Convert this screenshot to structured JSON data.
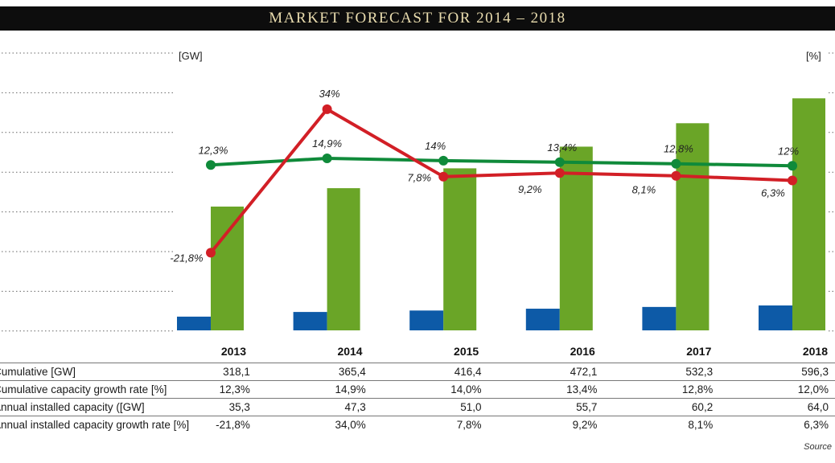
{
  "title": "MARKET FORECAST FOR 2014 – 2018",
  "colors": {
    "cumulative_bar": "#6aa527",
    "annual_bar": "#0d5aa7",
    "cumulative_growth_line": "#0f8a3a",
    "annual_growth_line": "#d21f26",
    "title_bg": "#0d0d0d",
    "title_text": "#e9dcae"
  },
  "chart_data": {
    "type": "bar",
    "categories": [
      "2013",
      "2014",
      "2015",
      "2016",
      "2017",
      "2018"
    ],
    "left_unit": "[GW]",
    "right_unit": "[%]",
    "series": [
      {
        "key": "annual",
        "kind": "bar",
        "axis": "left",
        "values": [
          35.3,
          47.3,
          51.0,
          55.7,
          60.2,
          64.0
        ]
      },
      {
        "key": "cumulative",
        "kind": "bar",
        "axis": "left",
        "values": [
          318.1,
          365.4,
          416.4,
          472.1,
          532.3,
          596.3
        ]
      },
      {
        "key": "cumulative_growth",
        "kind": "line",
        "axis": "right",
        "values": [
          12.3,
          14.9,
          14.0,
          13.4,
          12.8,
          12.0
        ],
        "labels": [
          "12,3%",
          "14,9%",
          "14%",
          "13,4%",
          "12,8%",
          "12%"
        ]
      },
      {
        "key": "annual_growth",
        "kind": "line",
        "axis": "right",
        "values": [
          -21.8,
          34.0,
          7.8,
          9.2,
          8.1,
          6.3
        ],
        "labels": [
          "-21,8%",
          "34%",
          "7,8%",
          "9,2%",
          "8,1%",
          "6,3%"
        ]
      }
    ],
    "grid": "dotted horizontal"
  },
  "table": {
    "years": [
      "2013",
      "2014",
      "2015",
      "2016",
      "2017",
      "2018"
    ],
    "rows": [
      {
        "label": "Cumulative [GW]",
        "values": [
          "318,1",
          "365,4",
          "416,4",
          "472,1",
          "532,3",
          "596,3"
        ]
      },
      {
        "label": "Cumulative capacity growth rate [%]",
        "values": [
          "12,3%",
          "14,9%",
          "14,0%",
          "13,4%",
          "12,8%",
          "12,0%"
        ]
      },
      {
        "label": "Annual installed capacity ([GW]",
        "values": [
          "35,3",
          "47,3",
          "51,0",
          "55,7",
          "60,2",
          "64,0"
        ]
      },
      {
        "label": "Annual installed capacity growth rate [%]",
        "values": [
          "-21,8%",
          "34,0%",
          "7,8%",
          "9,2%",
          "8,1%",
          "6,3%"
        ]
      }
    ]
  },
  "source": "Source"
}
